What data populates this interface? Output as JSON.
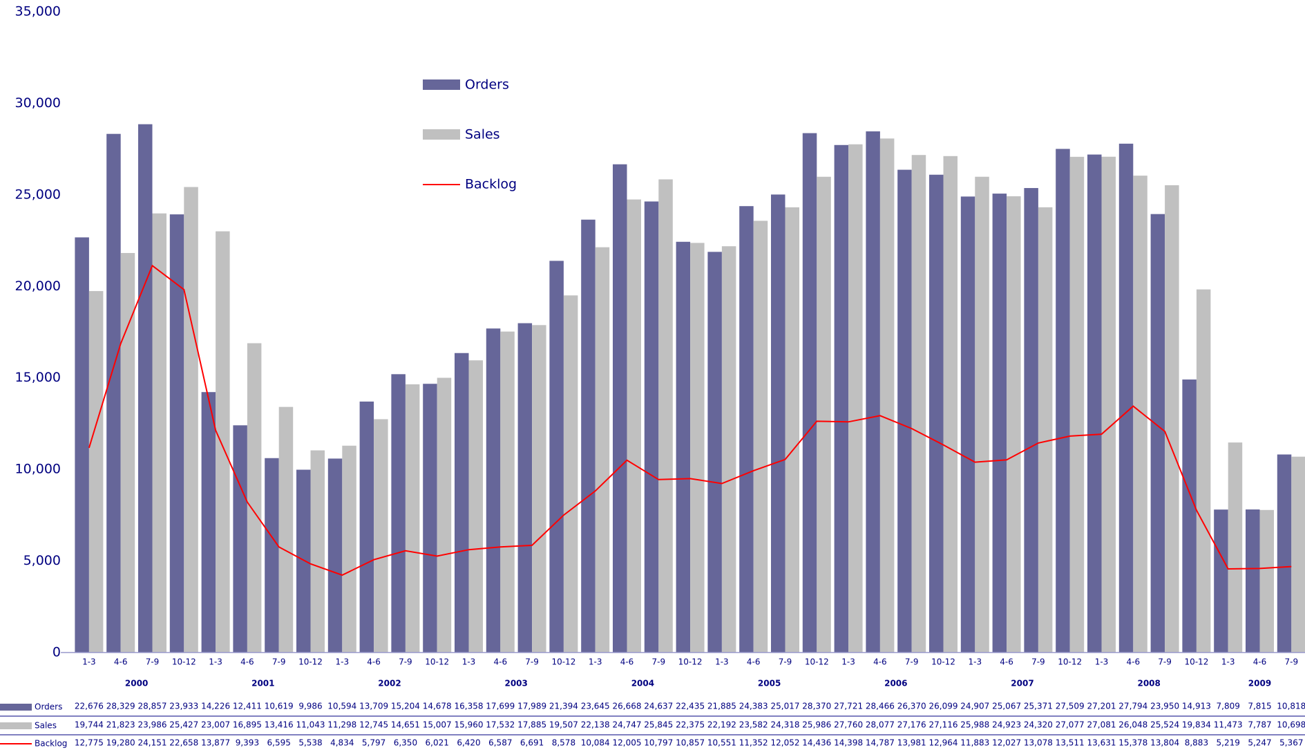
{
  "chart_data": {
    "type": "bar",
    "categories": [
      "1-3",
      "4-6",
      "7-9",
      "10-12",
      "1-3",
      "4-6",
      "7-9",
      "10-12",
      "1-3",
      "4-6",
      "7-9",
      "10-12",
      "1-3",
      "4-6",
      "7-9",
      "10-12",
      "1-3",
      "4-6",
      "7-9",
      "10-12",
      "1-3",
      "4-6",
      "7-9",
      "10-12",
      "1-3",
      "4-6",
      "7-9",
      "10-12",
      "1-3",
      "4-6",
      "7-9",
      "10-12",
      "1-3",
      "4-6",
      "7-9",
      "10-12",
      "1-3",
      "4-6",
      "7-9"
    ],
    "years": [
      "2000",
      "2001",
      "2002",
      "2003",
      "2004",
      "2005",
      "2006",
      "2007",
      "2008",
      "2009"
    ],
    "ylim": [
      0,
      35000
    ],
    "yticks": [
      0,
      {
        "value": 5000,
        "label": "5,000"
      },
      {
        "value": 10000,
        "label": "10,000"
      },
      {
        "value": 15000,
        "label": "15,000"
      },
      {
        "value": 20000,
        "label": "20,000"
      },
      {
        "value": 25000,
        "label": "25,000"
      },
      {
        "value": 30000,
        "label": "30,000"
      },
      {
        "value": 35000,
        "label": "35,000"
      }
    ],
    "y2lim": [
      0,
      40000
    ],
    "legend": "upper center",
    "series": [
      {
        "name": "Orders",
        "type": "bar",
        "color": "#666699",
        "values": [
          22676,
          28329,
          28857,
          23933,
          14226,
          12411,
          10619,
          9986,
          10594,
          13709,
          15204,
          14678,
          16358,
          17699,
          17989,
          21394,
          23645,
          26668,
          24637,
          22435,
          21885,
          24383,
          25017,
          28370,
          27721,
          28466,
          26370,
          26099,
          24907,
          25067,
          25371,
          27509,
          27201,
          27794,
          23950,
          14913,
          7809,
          7815,
          10818
        ],
        "value_labels": [
          "22,676",
          "28,329",
          "28,857",
          "23,933",
          "14,226",
          "12,411",
          "10,619",
          "9,986",
          "10,594",
          "13,709",
          "15,204",
          "14,678",
          "16,358",
          "17,699",
          "17,989",
          "21,394",
          "23,645",
          "26,668",
          "24,637",
          "22,435",
          "21,885",
          "24,383",
          "25,017",
          "28,370",
          "27,721",
          "28,466",
          "26,370",
          "26,099",
          "24,907",
          "25,067",
          "25,371",
          "27,509",
          "27,201",
          "27,794",
          "23,950",
          "14,913",
          "7,809",
          "7,815",
          "10,818"
        ]
      },
      {
        "name": "Sales",
        "type": "bar",
        "color": "#c0c0c0",
        "values": [
          19744,
          21823,
          23986,
          25427,
          23007,
          16895,
          13416,
          11043,
          11298,
          12745,
          14651,
          15007,
          15960,
          17532,
          17885,
          19507,
          22138,
          24747,
          25845,
          22375,
          22192,
          23582,
          24318,
          25986,
          27760,
          28077,
          27176,
          27116,
          25988,
          24923,
          24320,
          27077,
          27081,
          26048,
          25524,
          19834,
          11473,
          7787,
          10698
        ],
        "value_labels": [
          "19,744",
          "21,823",
          "23,986",
          "25,427",
          "23,007",
          "16,895",
          "13,416",
          "11,043",
          "11,298",
          "12,745",
          "14,651",
          "15,007",
          "15,960",
          "17,532",
          "17,885",
          "19,507",
          "22,138",
          "24,747",
          "25,845",
          "22,375",
          "22,192",
          "23,582",
          "24,318",
          "25,986",
          "27,760",
          "28,077",
          "27,176",
          "27,116",
          "25,988",
          "24,923",
          "24,320",
          "27,077",
          "27,081",
          "26,048",
          "25,524",
          "19,834",
          "11,473",
          "7,787",
          "10,698"
        ]
      },
      {
        "name": "Backlog",
        "type": "line",
        "axis": "y2",
        "color": "#ff0000",
        "values": [
          12775,
          19280,
          24151,
          22658,
          13877,
          9393,
          6595,
          5538,
          4834,
          5797,
          6350,
          6021,
          6420,
          6587,
          6691,
          8578,
          10084,
          12005,
          10797,
          10857,
          10551,
          11352,
          12052,
          14436,
          14398,
          14787,
          13981,
          12964,
          11883,
          12027,
          13078,
          13511,
          13631,
          15378,
          13804,
          8883,
          5219,
          5247,
          5367
        ],
        "value_labels": [
          "12,775",
          "19,280",
          "24,151",
          "22,658",
          "13,877",
          "9,393",
          "6,595",
          "5,538",
          "4,834",
          "5,797",
          "6,350",
          "6,021",
          "6,420",
          "6,587",
          "6,691",
          "8,578",
          "10,084",
          "12,005",
          "10,797",
          "10,857",
          "10,551",
          "11,352",
          "12,052",
          "14,436",
          "14,398",
          "14,787",
          "13,981",
          "12,964",
          "11,883",
          "12,027",
          "13,078",
          "13,511",
          "13,631",
          "15,378",
          "13,804",
          "8,883",
          "5,219",
          "5,247",
          "5,367"
        ]
      }
    ]
  }
}
